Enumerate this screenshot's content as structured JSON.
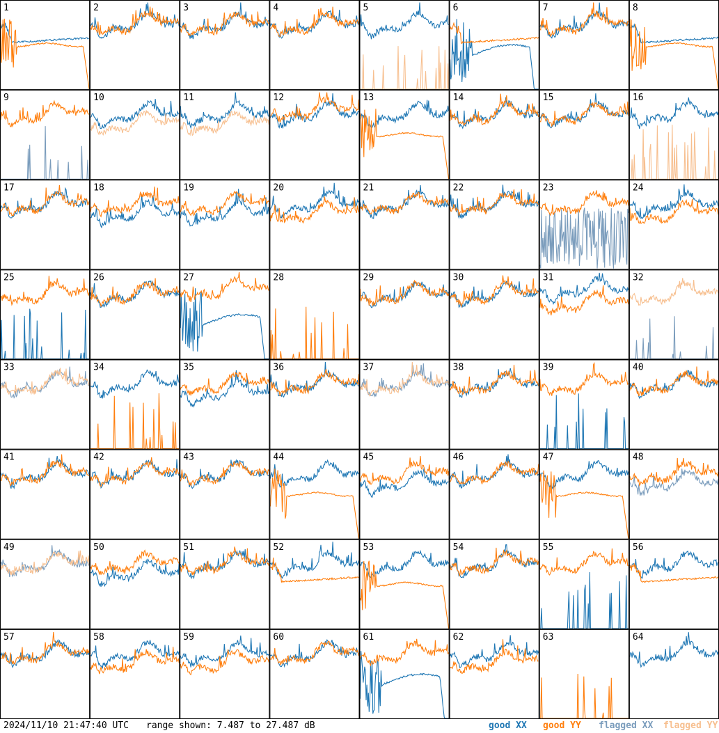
{
  "timestamp": "2024/11/10 21:47:40 UTC",
  "range_text": "range shown: 7.487 to 27.487 dB",
  "legend": [
    {
      "label": "good XX",
      "color": "#1f77b4"
    },
    {
      "label": "good YY",
      "color": "#ff7f0e"
    },
    {
      "label": "flagged XX",
      "color": "#7a9cbc"
    },
    {
      "label": "flagged YY",
      "color": "#f7bf8f"
    }
  ],
  "colors": {
    "good_xx": "#1f77b4",
    "good_yy": "#ff7f0e",
    "flagged_xx": "#7a9cbc",
    "flagged_yy": "#f7bf8f",
    "border": "#000000"
  },
  "chart_data": {
    "type": "line",
    "grid": {
      "rows": 8,
      "cols": 8
    },
    "x_unit": "frequency channel (unlabeled)",
    "ylim": [
      7.487,
      27.487
    ],
    "y_unit": "dB",
    "series_names": [
      "good XX",
      "good YY",
      "flagged XX",
      "flagged YY"
    ],
    "panels": [
      {
        "id": "1",
        "xx": "good",
        "yy": "good",
        "xx_pattern": "dip",
        "yy_pattern": "falloff"
      },
      {
        "id": "2",
        "xx": "good",
        "yy": "good",
        "xx_pattern": "normal",
        "yy_pattern": "normal"
      },
      {
        "id": "3",
        "xx": "good",
        "yy": "good",
        "xx_pattern": "normal",
        "yy_pattern": "normal"
      },
      {
        "id": "4",
        "xx": "good",
        "yy": "good",
        "xx_pattern": "normal",
        "yy_pattern": "normal"
      },
      {
        "id": "5",
        "xx": "good",
        "yy": "flagged",
        "xx_pattern": "normal",
        "yy_pattern": "spikes"
      },
      {
        "id": "6",
        "xx": "good",
        "yy": "good",
        "xx_pattern": "broken",
        "yy_pattern": "dip"
      },
      {
        "id": "7",
        "xx": "good",
        "yy": "good",
        "xx_pattern": "normal",
        "yy_pattern": "normal"
      },
      {
        "id": "8",
        "xx": "good",
        "yy": "good",
        "xx_pattern": "dip",
        "yy_pattern": "falloff"
      },
      {
        "id": "9",
        "xx": "flagged",
        "yy": "good",
        "xx_pattern": "spikes",
        "yy_pattern": "normal"
      },
      {
        "id": "10",
        "xx": "good",
        "yy": "flagged",
        "xx_pattern": "normal",
        "yy_pattern": "low"
      },
      {
        "id": "11",
        "xx": "good",
        "yy": "flagged",
        "xx_pattern": "normal",
        "yy_pattern": "low"
      },
      {
        "id": "12",
        "xx": "good",
        "yy": "good",
        "xx_pattern": "normal",
        "yy_pattern": "high"
      },
      {
        "id": "13",
        "xx": "good",
        "yy": "good",
        "xx_pattern": "normal",
        "yy_pattern": "falloff"
      },
      {
        "id": "14",
        "xx": "good",
        "yy": "good",
        "xx_pattern": "normal",
        "yy_pattern": "normal"
      },
      {
        "id": "15",
        "xx": "good",
        "yy": "good",
        "xx_pattern": "normal",
        "yy_pattern": "normal"
      },
      {
        "id": "16",
        "xx": "good",
        "yy": "flagged",
        "xx_pattern": "normal",
        "yy_pattern": "spikes"
      },
      {
        "id": "17",
        "xx": "good",
        "yy": "good",
        "xx_pattern": "normal",
        "yy_pattern": "normal"
      },
      {
        "id": "18",
        "xx": "good",
        "yy": "good",
        "xx_pattern": "low",
        "yy_pattern": "normal"
      },
      {
        "id": "19",
        "xx": "good",
        "yy": "good",
        "xx_pattern": "low",
        "yy_pattern": "normal"
      },
      {
        "id": "20",
        "xx": "good",
        "yy": "good",
        "xx_pattern": "normal",
        "yy_pattern": "low"
      },
      {
        "id": "21",
        "xx": "good",
        "yy": "good",
        "xx_pattern": "normal",
        "yy_pattern": "normal"
      },
      {
        "id": "22",
        "xx": "good",
        "yy": "good",
        "xx_pattern": "normal",
        "yy_pattern": "normal"
      },
      {
        "id": "23",
        "xx": "flagged",
        "yy": "good",
        "xx_pattern": "noise",
        "yy_pattern": "normal"
      },
      {
        "id": "24",
        "xx": "good",
        "yy": "good",
        "xx_pattern": "normal",
        "yy_pattern": "low"
      },
      {
        "id": "25",
        "xx": "good",
        "yy": "good",
        "xx_pattern": "spikes",
        "yy_pattern": "normal"
      },
      {
        "id": "26",
        "xx": "good",
        "yy": "good",
        "xx_pattern": "normal",
        "yy_pattern": "normal"
      },
      {
        "id": "27",
        "xx": "good",
        "yy": "good",
        "xx_pattern": "broken",
        "yy_pattern": "high"
      },
      {
        "id": "28",
        "xx": "good",
        "yy": "good",
        "xx_pattern": "none",
        "yy_pattern": "spikes"
      },
      {
        "id": "29",
        "xx": "good",
        "yy": "good",
        "xx_pattern": "normal",
        "yy_pattern": "normal"
      },
      {
        "id": "30",
        "xx": "good",
        "yy": "good",
        "xx_pattern": "normal",
        "yy_pattern": "normal"
      },
      {
        "id": "31",
        "xx": "good",
        "yy": "good",
        "xx_pattern": "high",
        "yy_pattern": "low"
      },
      {
        "id": "32",
        "xx": "flagged",
        "yy": "flagged",
        "xx_pattern": "spikes",
        "yy_pattern": "normal"
      },
      {
        "id": "33",
        "xx": "flagged",
        "yy": "flagged",
        "xx_pattern": "normal",
        "yy_pattern": "normal"
      },
      {
        "id": "34",
        "xx": "good",
        "yy": "good",
        "xx_pattern": "normal",
        "yy_pattern": "spikes"
      },
      {
        "id": "35",
        "xx": "good",
        "yy": "good",
        "xx_pattern": "low",
        "yy_pattern": "normal"
      },
      {
        "id": "36",
        "xx": "good",
        "yy": "good",
        "xx_pattern": "normal",
        "yy_pattern": "normal"
      },
      {
        "id": "37",
        "xx": "flagged",
        "yy": "flagged",
        "xx_pattern": "normal",
        "yy_pattern": "normal"
      },
      {
        "id": "38",
        "xx": "good",
        "yy": "good",
        "xx_pattern": "normal",
        "yy_pattern": "normal"
      },
      {
        "id": "39",
        "xx": "good",
        "yy": "good",
        "xx_pattern": "spikes",
        "yy_pattern": "normal"
      },
      {
        "id": "40",
        "xx": "good",
        "yy": "good",
        "xx_pattern": "normal",
        "yy_pattern": "normal"
      },
      {
        "id": "41",
        "xx": "good",
        "yy": "good",
        "xx_pattern": "normal",
        "yy_pattern": "normal"
      },
      {
        "id": "42",
        "xx": "good",
        "yy": "good",
        "xx_pattern": "normal",
        "yy_pattern": "normal"
      },
      {
        "id": "43",
        "xx": "good",
        "yy": "good",
        "xx_pattern": "normal",
        "yy_pattern": "normal"
      },
      {
        "id": "44",
        "xx": "good",
        "yy": "good",
        "xx_pattern": "normal",
        "yy_pattern": "falloff"
      },
      {
        "id": "45",
        "xx": "good",
        "yy": "good",
        "xx_pattern": "low",
        "yy_pattern": "normal"
      },
      {
        "id": "46",
        "xx": "good",
        "yy": "good",
        "xx_pattern": "normal",
        "yy_pattern": "normal"
      },
      {
        "id": "47",
        "xx": "good",
        "yy": "good",
        "xx_pattern": "normal",
        "yy_pattern": "falloff"
      },
      {
        "id": "48",
        "xx": "flagged",
        "yy": "good",
        "xx_pattern": "low",
        "yy_pattern": "normal"
      },
      {
        "id": "49",
        "xx": "flagged",
        "yy": "flagged",
        "xx_pattern": "normal",
        "yy_pattern": "normal"
      },
      {
        "id": "50",
        "xx": "good",
        "yy": "good",
        "xx_pattern": "low",
        "yy_pattern": "normal"
      },
      {
        "id": "51",
        "xx": "good",
        "yy": "good",
        "xx_pattern": "normal",
        "yy_pattern": "normal"
      },
      {
        "id": "52",
        "xx": "good",
        "yy": "good",
        "xx_pattern": "normal",
        "yy_pattern": "dip"
      },
      {
        "id": "53",
        "xx": "good",
        "yy": "good",
        "xx_pattern": "normal",
        "yy_pattern": "falloff"
      },
      {
        "id": "54",
        "xx": "good",
        "yy": "good",
        "xx_pattern": "normal",
        "yy_pattern": "normal"
      },
      {
        "id": "55",
        "xx": "good",
        "yy": "good",
        "xx_pattern": "spikes",
        "yy_pattern": "normal"
      },
      {
        "id": "56",
        "xx": "good",
        "yy": "good",
        "xx_pattern": "normal",
        "yy_pattern": "dip"
      },
      {
        "id": "57",
        "xx": "good",
        "yy": "good",
        "xx_pattern": "normal",
        "yy_pattern": "normal"
      },
      {
        "id": "58",
        "xx": "good",
        "yy": "good",
        "xx_pattern": "normal",
        "yy_pattern": "low"
      },
      {
        "id": "59",
        "xx": "good",
        "yy": "good",
        "xx_pattern": "normal",
        "yy_pattern": "low"
      },
      {
        "id": "60",
        "xx": "good",
        "yy": "good",
        "xx_pattern": "normal",
        "yy_pattern": "normal"
      },
      {
        "id": "61",
        "xx": "good",
        "yy": "good",
        "xx_pattern": "broken",
        "yy_pattern": "normal"
      },
      {
        "id": "62",
        "xx": "good",
        "yy": "good",
        "xx_pattern": "normal",
        "yy_pattern": "low"
      },
      {
        "id": "63",
        "xx": "good",
        "yy": "good",
        "xx_pattern": "none",
        "yy_pattern": "spikes"
      },
      {
        "id": "64",
        "xx": "good",
        "yy": "good",
        "xx_pattern": "normal",
        "yy_pattern": "none"
      }
    ]
  }
}
